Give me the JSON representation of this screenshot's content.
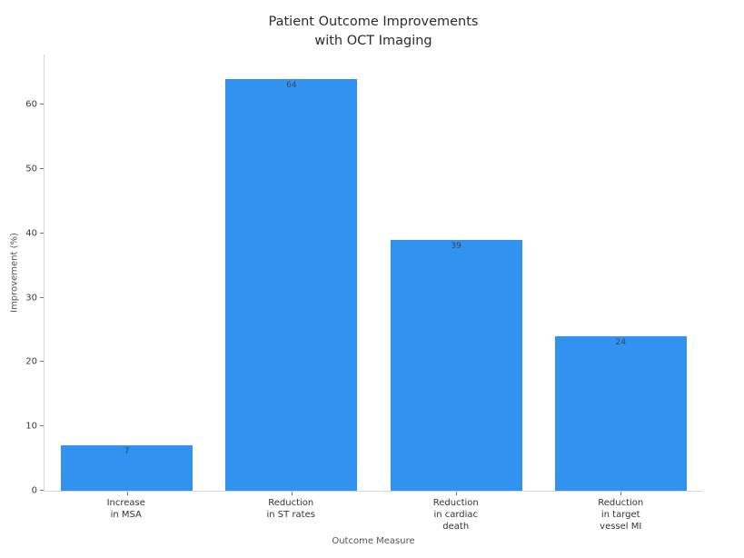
{
  "chart_data": {
    "type": "bar",
    "title": "Patient Outcome Improvements\nwith OCT Imaging",
    "title_lines": [
      "Patient Outcome Improvements",
      "with OCT Imaging"
    ],
    "categories": [
      "Increase\nin MSA",
      "Reduction\nin ST rates",
      "Reduction\nin cardiac\ndeath",
      "Reduction\nin target\nvessel MI"
    ],
    "values": [
      7,
      64,
      39,
      24
    ],
    "value_labels_shown": true,
    "xlabel": "Outcome Measure",
    "ylabel": "Improvement (%)",
    "yticks": [
      0,
      10,
      20,
      30,
      40,
      50,
      60
    ],
    "ylim": [
      0,
      67.8
    ],
    "grid": false,
    "legend": false,
    "colors": {
      "bar_fill": "#3292F0",
      "value_label": "#3c4a58",
      "title_text": "#2b2b2b",
      "tick_label": "#3b3b3b",
      "axis_title": "#555555",
      "spine": "#d8d8d8",
      "background": "#ffffff"
    }
  }
}
